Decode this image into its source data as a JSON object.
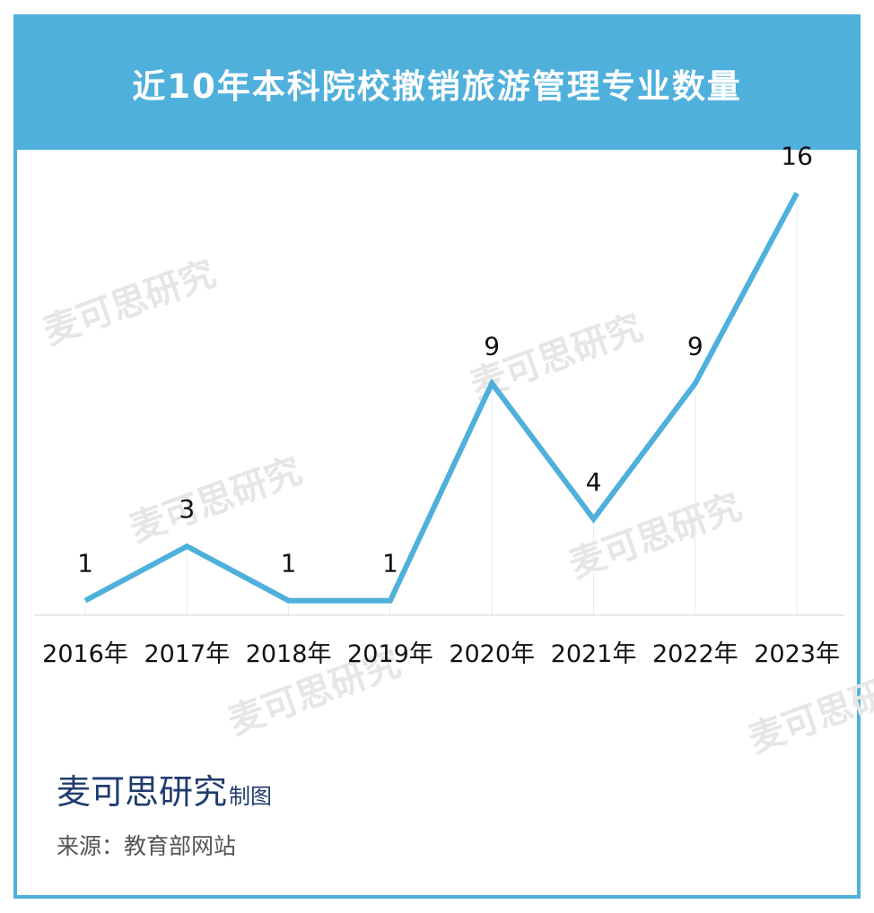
{
  "header": {
    "title": "近10年本科院校撤销旅游管理专业数量"
  },
  "chart_data": {
    "type": "line",
    "categories": [
      "2016年",
      "2017年",
      "2018年",
      "2019年",
      "2020年",
      "2021年",
      "2022年",
      "2023年"
    ],
    "values": [
      1,
      3,
      1,
      1,
      9,
      4,
      9,
      16
    ],
    "ylim": [
      0,
      17
    ],
    "grid": false,
    "legend": "none",
    "line_color": "#4fb0dc"
  },
  "footer": {
    "brand": "麦可思研究",
    "brand_suffix": "制图",
    "source": "来源：教育部网站"
  },
  "watermark": {
    "text": "麦可思研究"
  },
  "colors": {
    "accent": "#4fb0dc",
    "brand": "#1f3c6e"
  }
}
